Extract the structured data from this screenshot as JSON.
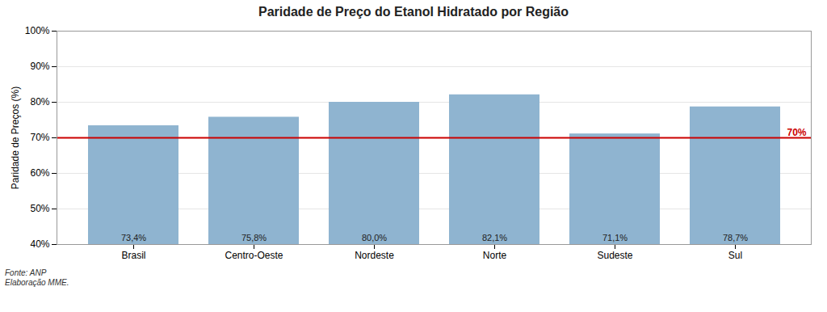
{
  "chart_data": {
    "type": "bar",
    "title": "Paridade de Preço do Etanol Hidratado por Região",
    "categories": [
      "Brasil",
      "Centro-Oeste",
      "Nordeste",
      "Norte",
      "Sudeste",
      "Sul"
    ],
    "values": [
      73.4,
      75.8,
      80.0,
      82.1,
      71.1,
      78.7
    ],
    "value_labels": [
      "73,4%",
      "75,8%",
      "80,0%",
      "82,1%",
      "71,1%",
      "78,7%"
    ],
    "data_labels": true,
    "color": "#8fb4d0",
    "ylabel": "Paridade de Preços (%)",
    "ylim": [
      40,
      100
    ],
    "yticks": [
      {
        "value": 40,
        "label": "40%"
      },
      {
        "value": 50,
        "label": "50%"
      },
      {
        "value": 60,
        "label": "60%"
      },
      {
        "value": 70,
        "label": "70%"
      },
      {
        "value": 80,
        "label": "80%"
      },
      {
        "value": 90,
        "label": "90%"
      },
      {
        "value": 100,
        "label": "100%"
      }
    ],
    "grid": true,
    "annotations": [
      {
        "type": "hline",
        "y": 70,
        "label": "70%",
        "color": "#cc0000"
      }
    ],
    "footnote": "Fonte: ANP\nElaboração MME."
  }
}
